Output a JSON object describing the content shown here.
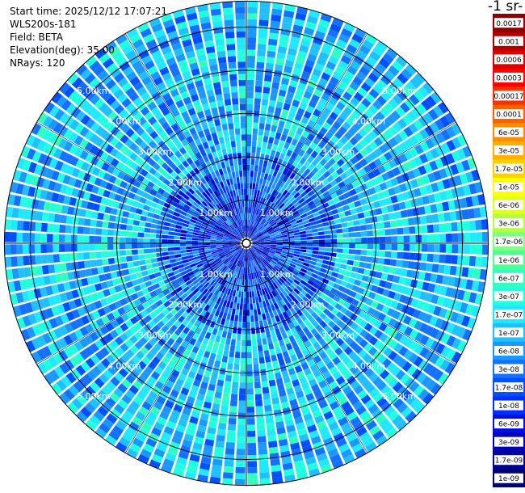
{
  "header": {
    "start_time": "Start time: 2025/12/12 17:07:21",
    "instrument": "WLS200s-181",
    "field": "Field: BETA",
    "elevation": "Elevation(deg): 35.00",
    "nrays": "NRays: 120"
  },
  "colorbar": {
    "title": "-1 sr-",
    "ticks": [
      "0.0017",
      "0.001",
      "0.0006",
      "0.0003",
      "0.00017",
      "0.0001",
      "6e-05",
      "3e-05",
      "1.7e-05",
      "1e-05",
      "6e-06",
      "3e-06",
      "1.7e-06",
      "1e-06",
      "6e-07",
      "3e-07",
      "1.7e-07",
      "1e-07",
      "6e-08",
      "3e-08",
      "1.7e-08",
      "1e-08",
      "6e-09",
      "3e-09",
      "1.7e-09",
      "1e-09"
    ],
    "colors": [
      "#8b0000",
      "#b00000",
      "#d80000",
      "#ff0000",
      "#ff3000",
      "#ff6000",
      "#ff8c00",
      "#ffb000",
      "#ffd000",
      "#ffff00",
      "#e0ff20",
      "#b0ff40",
      "#80ff80",
      "#50ff90",
      "#30ffc0",
      "#20ffe0",
      "#20e8ff",
      "#20c0ff",
      "#1a98ff",
      "#1470ff",
      "#0050ff",
      "#0030ff",
      "#0010e0",
      "#0000c0",
      "#00009a",
      "#000070"
    ]
  },
  "chart_data": {
    "type": "heatmap",
    "projection": "polar-ppi",
    "rays": 120,
    "range_rings_km": [
      1,
      2,
      3,
      4,
      5
    ],
    "ring_labels": [
      "1.00km",
      "2.00km",
      "3.00km",
      "4.00km",
      "5.00km"
    ],
    "max_range_km": 5.6,
    "color_scale": "log",
    "value_range": [
      1e-09,
      0.0017
    ],
    "typical_value": 1e-07,
    "near_field_value": 1e-08,
    "grid": true
  }
}
